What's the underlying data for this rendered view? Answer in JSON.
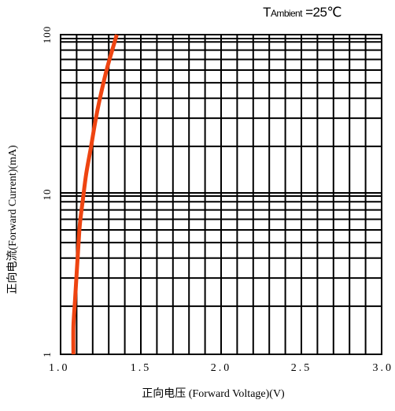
{
  "chart_data": {
    "type": "line",
    "title": "",
    "annotation": {
      "t": "T",
      "sub": "Ambient",
      "rest": " =25",
      "unit": "℃"
    },
    "xlabel": "正向电压 (Forward Voltage)(V)",
    "ylabel": "正向电流(Forward  Current)(mA)",
    "xlim": [
      1.0,
      3.0
    ],
    "ylim": [
      1,
      100
    ],
    "yscale": "log",
    "grid": true,
    "x_ticks": [
      {
        "value": 1.0,
        "label": "1.0"
      },
      {
        "value": 1.5,
        "label": "1.5"
      },
      {
        "value": 2.0,
        "label": "2.0"
      },
      {
        "value": 2.5,
        "label": "2.5"
      },
      {
        "value": 3.0,
        "label": "3.0"
      }
    ],
    "y_ticks": [
      {
        "value": 1,
        "label": "1"
      },
      {
        "value": 10,
        "label": "10"
      },
      {
        "value": 100,
        "label": "100"
      }
    ],
    "series_color": "#ee4411",
    "series": [
      {
        "name": "",
        "x": [
          1.08,
          1.08,
          1.09,
          1.1,
          1.11,
          1.12,
          1.14,
          1.16,
          1.19,
          1.22,
          1.25,
          1.29,
          1.35
        ],
        "y": [
          1.0,
          1.5,
          2.2,
          3.2,
          4.6,
          6.5,
          9.5,
          13.5,
          20,
          30,
          42,
          62,
          100
        ]
      }
    ]
  }
}
